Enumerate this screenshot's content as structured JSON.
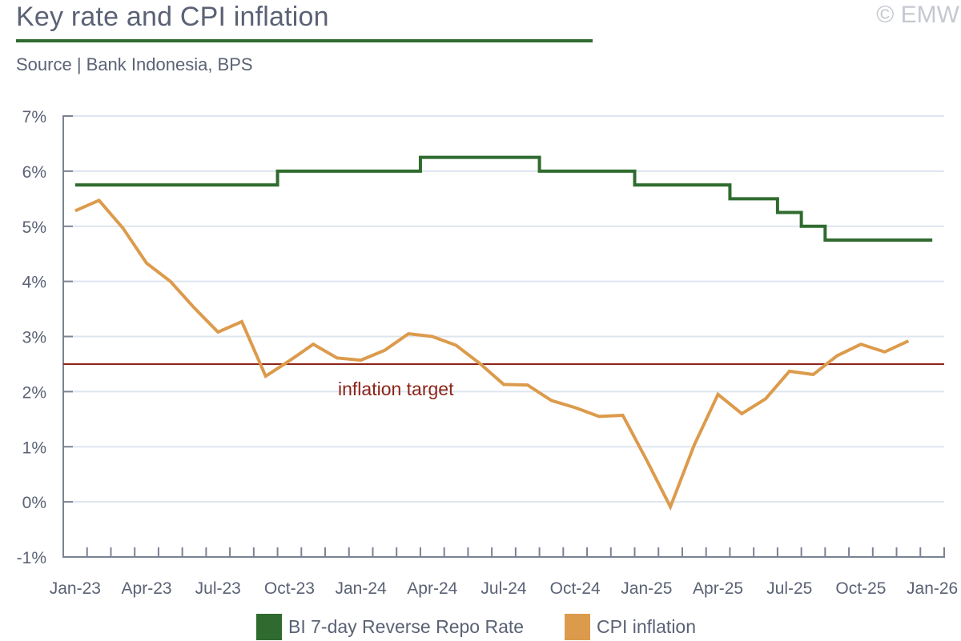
{
  "header": {
    "title": "Key rate and CPI inflation",
    "source": "Source | Bank Indonesia, BPS",
    "copyright": "© EMW"
  },
  "colors": {
    "key_rate": "#2f6b2f",
    "cpi": "#dc9b4c",
    "target": "#8e2419",
    "grid": "#dde5ef",
    "axis": "#7a8293"
  },
  "chart_data": {
    "type": "line",
    "title": "Key rate and CPI inflation",
    "xlabel": "",
    "ylabel": "",
    "ylim": [
      -1,
      7
    ],
    "yticks": [
      -1,
      0,
      1,
      2,
      3,
      4,
      5,
      6,
      7
    ],
    "ytick_labels": [
      "-1%",
      "0%",
      "1%",
      "2%",
      "3%",
      "4%",
      "5%",
      "6%",
      "7%"
    ],
    "grid": true,
    "x": [
      "Jan-23",
      "Feb-23",
      "Mar-23",
      "Apr-23",
      "May-23",
      "Jun-23",
      "Jul-23",
      "Aug-23",
      "Sep-23",
      "Oct-23",
      "Nov-23",
      "Dec-23",
      "Jan-24",
      "Feb-24",
      "Mar-24",
      "Apr-24",
      "May-24",
      "Jun-24",
      "Jul-24",
      "Aug-24",
      "Sep-24",
      "Oct-24",
      "Nov-24",
      "Dec-24",
      "Jan-25",
      "Feb-25",
      "Mar-25",
      "Apr-25",
      "May-25",
      "Jun-25",
      "Jul-25",
      "Aug-25",
      "Sep-25",
      "Oct-25",
      "Nov-25",
      "Dec-25",
      "Jan-26"
    ],
    "xtick_labels": [
      {
        "label": "Jan-23",
        "index": 0
      },
      {
        "label": "Apr-23",
        "index": 3
      },
      {
        "label": "Jul-23",
        "index": 6
      },
      {
        "label": "Oct-23",
        "index": 9
      },
      {
        "label": "Jan-24",
        "index": 12
      },
      {
        "label": "Apr-24",
        "index": 15
      },
      {
        "label": "Jul-24",
        "index": 18
      },
      {
        "label": "Oct-24",
        "index": 21
      },
      {
        "label": "Jan-25",
        "index": 24
      },
      {
        "label": "Apr-25",
        "index": 27
      },
      {
        "label": "Jul-25",
        "index": 30
      },
      {
        "label": "Oct-25",
        "index": 33
      },
      {
        "label": "Jan-26",
        "index": 36
      }
    ],
    "series": [
      {
        "name": "BI 7-day Reverse Repo Rate",
        "style": "step",
        "values": [
          5.75,
          5.75,
          5.75,
          5.75,
          5.75,
          5.75,
          5.75,
          5.75,
          5.75,
          6.0,
          6.0,
          6.0,
          6.0,
          6.0,
          6.0,
          6.25,
          6.25,
          6.25,
          6.25,
          6.25,
          6.0,
          6.0,
          6.0,
          6.0,
          5.75,
          5.75,
          5.75,
          5.75,
          5.5,
          5.5,
          5.25,
          5.0,
          4.75,
          4.75,
          4.75,
          4.75,
          4.75
        ]
      },
      {
        "name": "CPI inflation",
        "style": "line",
        "values": [
          5.28,
          5.47,
          4.97,
          4.33,
          4.0,
          3.52,
          3.08,
          3.27,
          2.28,
          2.56,
          2.86,
          2.61,
          2.57,
          2.75,
          3.05,
          3.0,
          2.84,
          2.51,
          2.13,
          2.12,
          1.84,
          1.71,
          1.55,
          1.57,
          0.76,
          -0.09,
          1.03,
          1.95,
          1.6,
          1.87,
          2.37,
          2.31,
          2.65,
          2.86,
          2.72,
          2.92,
          null
        ]
      }
    ],
    "annotations": [
      {
        "type": "hline",
        "y": 2.5,
        "label": "inflation target"
      }
    ],
    "legend": {
      "position": "bottom-center",
      "entries": [
        "BI 7-day Reverse Repo Rate",
        "CPI inflation"
      ]
    }
  }
}
